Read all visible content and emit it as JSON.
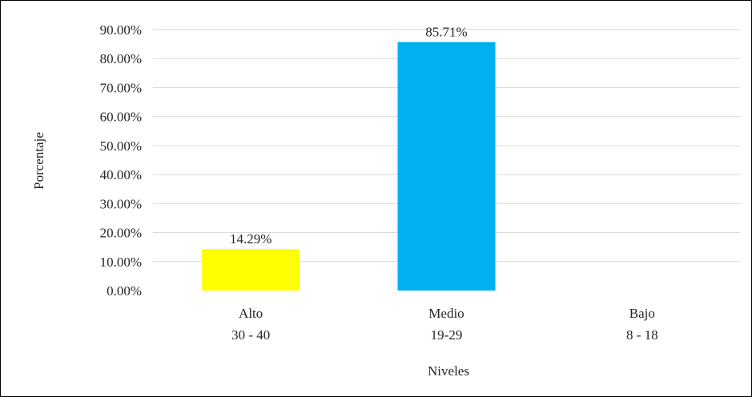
{
  "chart_data": {
    "type": "bar",
    "categories": [
      {
        "line1": "Alto",
        "line2": "30 - 40"
      },
      {
        "line1": "Medio",
        "line2": "19-29"
      },
      {
        "line1": "Bajo",
        "line2": "8 - 18"
      }
    ],
    "values": [
      14.29,
      85.71,
      0
    ],
    "value_labels": [
      "14.29%",
      "85.71%",
      ""
    ],
    "bar_colors": [
      "#FFFF00",
      "#00B0F0",
      "#00B0F0"
    ],
    "ylim": [
      0,
      90
    ],
    "yticks": [
      0,
      10,
      20,
      30,
      40,
      50,
      60,
      70,
      80,
      90
    ],
    "ytick_labels": [
      "0.00%",
      "10.00%",
      "20.00%",
      "30.00%",
      "40.00%",
      "50.00%",
      "60.00%",
      "70.00%",
      "80.00%",
      "90.00%"
    ],
    "xlabel": "Niveles",
    "ylabel": "Porcentaje",
    "grid": true,
    "gridline_color": "#D9D9D9"
  }
}
